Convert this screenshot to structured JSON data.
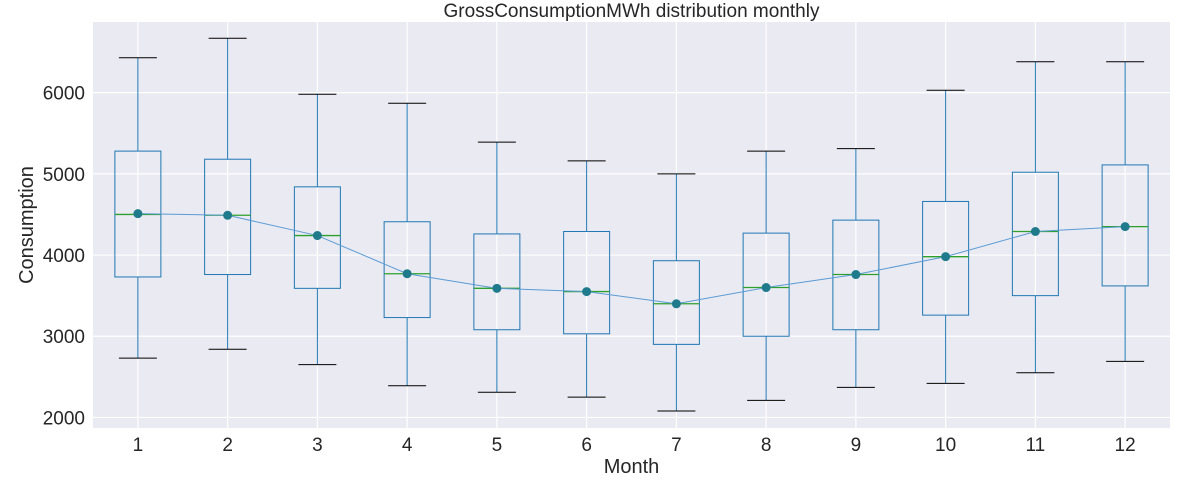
{
  "chart_data": {
    "type": "box",
    "title": "GrossConsumptionMWh distribution monthly",
    "xlabel": "Month",
    "ylabel": "Consumption",
    "categories": [
      "1",
      "2",
      "3",
      "4",
      "5",
      "6",
      "7",
      "8",
      "9",
      "10",
      "11",
      "12"
    ],
    "ylim": [
      1870,
      6870
    ],
    "yticks": [
      2000,
      3000,
      4000,
      5000,
      6000
    ],
    "grid": true,
    "boxes": [
      {
        "whislo": 2730,
        "q1": 3730,
        "med": 4500,
        "q3": 5280,
        "whishi": 6430
      },
      {
        "whislo": 2840,
        "q1": 3760,
        "med": 4490,
        "q3": 5180,
        "whishi": 6670
      },
      {
        "whislo": 2650,
        "q1": 3590,
        "med": 4240,
        "q3": 4840,
        "whishi": 5980
      },
      {
        "whislo": 2390,
        "q1": 3230,
        "med": 3770,
        "q3": 4410,
        "whishi": 5870
      },
      {
        "whislo": 2310,
        "q1": 3080,
        "med": 3590,
        "q3": 4260,
        "whishi": 5390
      },
      {
        "whislo": 2250,
        "q1": 3030,
        "med": 3550,
        "q3": 4290,
        "whishi": 5160
      },
      {
        "whislo": 2080,
        "q1": 2900,
        "med": 3400,
        "q3": 3930,
        "whishi": 5000
      },
      {
        "whislo": 2210,
        "q1": 3000,
        "med": 3600,
        "q3": 4270,
        "whishi": 5280
      },
      {
        "whislo": 2370,
        "q1": 3080,
        "med": 3760,
        "q3": 4430,
        "whishi": 5310
      },
      {
        "whislo": 2420,
        "q1": 3260,
        "med": 3980,
        "q3": 4660,
        "whishi": 6030
      },
      {
        "whislo": 2550,
        "q1": 3500,
        "med": 4290,
        "q3": 5020,
        "whishi": 6380
      },
      {
        "whislo": 2690,
        "q1": 3620,
        "med": 4350,
        "q3": 5110,
        "whishi": 6380
      }
    ],
    "mean_line": [
      4510,
      4490,
      4240,
      3770,
      3590,
      3550,
      3400,
      3600,
      3760,
      3980,
      4290,
      4350
    ],
    "colors": {
      "background": "#eaeaf2",
      "grid": "#ffffff",
      "box": "#1f77b4",
      "median": "#2ca02c",
      "whisker_cap": "#000000",
      "marker": "#1f7a8c",
      "line": "#5b9bd5"
    }
  }
}
